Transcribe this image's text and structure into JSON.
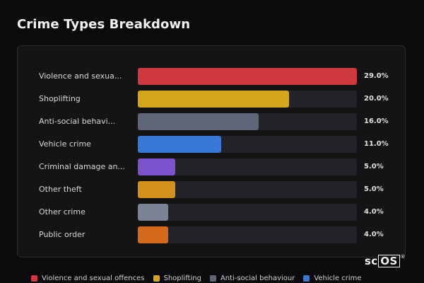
{
  "title": "Crime Types Breakdown",
  "logo": {
    "prefix": "sc",
    "boxed": "OS",
    "mark": "®"
  },
  "chart_data": {
    "type": "bar",
    "orientation": "horizontal",
    "title": "Crime Types Breakdown",
    "xlim": [
      0,
      29
    ],
    "unit": "%",
    "categories": [
      "Violence and sexua...",
      "Shoplifting",
      "Anti-social behavi...",
      "Vehicle crime",
      "Criminal damage an...",
      "Other theft",
      "Other crime",
      "Public order"
    ],
    "values": [
      29.0,
      20.0,
      16.0,
      11.0,
      5.0,
      5.0,
      4.0,
      4.0
    ],
    "value_labels": [
      "29.0%",
      "20.0%",
      "16.0%",
      "11.0%",
      "5.0%",
      "5.0%",
      "4.0%",
      "4.0%"
    ],
    "colors": [
      "#d0393f",
      "#d6a61a",
      "#5d6577",
      "#3a78d8",
      "#7a52cc",
      "#d3901b",
      "#7a8495",
      "#d56a1c"
    ],
    "legend": {
      "placement": "bottom",
      "entries": [
        {
          "name": "Violence and sexual offences",
          "color": "#d0393f"
        },
        {
          "name": "Shoplifting",
          "color": "#d6a61a"
        },
        {
          "name": "Anti-social behaviour",
          "color": "#5d6577"
        },
        {
          "name": "Vehicle crime",
          "color": "#3a78d8"
        }
      ]
    },
    "grid": false
  }
}
